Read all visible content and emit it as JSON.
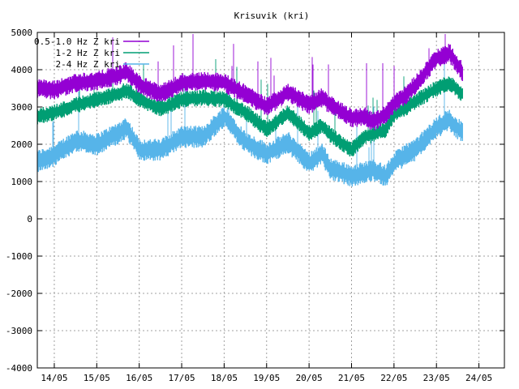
{
  "chart_data": {
    "type": "line",
    "title": "Krisuvik (kri)",
    "xlabel": "",
    "ylabel": "",
    "x_unit": "day (14 = 14/05)",
    "xlim": [
      13.6,
      24.6
    ],
    "ylim": [
      -4000,
      5000
    ],
    "grid": true,
    "legend_position": "top-left",
    "x_ticks": [
      {
        "x": 14,
        "label": "14/05"
      },
      {
        "x": 15,
        "label": "15/05"
      },
      {
        "x": 16,
        "label": "16/05"
      },
      {
        "x": 17,
        "label": "17/05"
      },
      {
        "x": 18,
        "label": "18/05"
      },
      {
        "x": 19,
        "label": "19/05"
      },
      {
        "x": 20,
        "label": "20/05"
      },
      {
        "x": 21,
        "label": "21/05"
      },
      {
        "x": 22,
        "label": "22/05"
      },
      {
        "x": 23,
        "label": "23/05"
      },
      {
        "x": 24,
        "label": "24/05"
      }
    ],
    "y_ticks": [
      {
        "y": 5000,
        "label": "5000"
      },
      {
        "y": 4000,
        "label": "4000"
      },
      {
        "y": 3000,
        "label": "3000"
      },
      {
        "y": 2000,
        "label": "2000"
      },
      {
        "y": 1000,
        "label": "1000"
      },
      {
        "y": 0,
        "label": "0"
      },
      {
        "y": -1000,
        "label": "-1000"
      },
      {
        "y": -2000,
        "label": "-2000"
      },
      {
        "y": -3000,
        "label": "-3000"
      },
      {
        "y": -4000,
        "label": "-4000"
      }
    ],
    "x": [
      13.6,
      14.0,
      14.5,
      15.0,
      15.5,
      15.7,
      16.0,
      16.5,
      17.0,
      17.5,
      18.0,
      18.5,
      19.0,
      19.5,
      20.0,
      20.3,
      20.5,
      21.0,
      21.3,
      21.5,
      21.8,
      22.0,
      22.3,
      22.5,
      23.0,
      23.3,
      23.6
    ],
    "series": [
      {
        "name": "0.5-1.0 Hz Z kri",
        "color": "#9400d3",
        "values": [
          3500,
          3450,
          3650,
          3700,
          3850,
          3950,
          3600,
          3350,
          3650,
          3700,
          3650,
          3350,
          3000,
          3400,
          3050,
          3250,
          3050,
          2700,
          2750,
          2600,
          2800,
          3100,
          3350,
          3600,
          4300,
          4450,
          3950
        ]
      },
      {
        "name": "1-2 Hz Z kri",
        "color": "#009e73",
        "values": [
          2750,
          2850,
          3050,
          3200,
          3350,
          3450,
          3200,
          2950,
          3200,
          3250,
          3200,
          2850,
          2400,
          2850,
          2300,
          2500,
          2250,
          1850,
          2200,
          2250,
          2400,
          2800,
          3000,
          3150,
          3500,
          3650,
          3350
        ]
      },
      {
        "name": "2-4 Hz Z kri",
        "color": "#56b4e9",
        "values": [
          1550,
          1700,
          2100,
          2000,
          2300,
          2450,
          1850,
          1850,
          2200,
          2200,
          2750,
          2050,
          1750,
          2050,
          1500,
          1750,
          1350,
          1150,
          1250,
          1300,
          1150,
          1500,
          1750,
          1850,
          2450,
          2650,
          2300
        ]
      }
    ]
  }
}
